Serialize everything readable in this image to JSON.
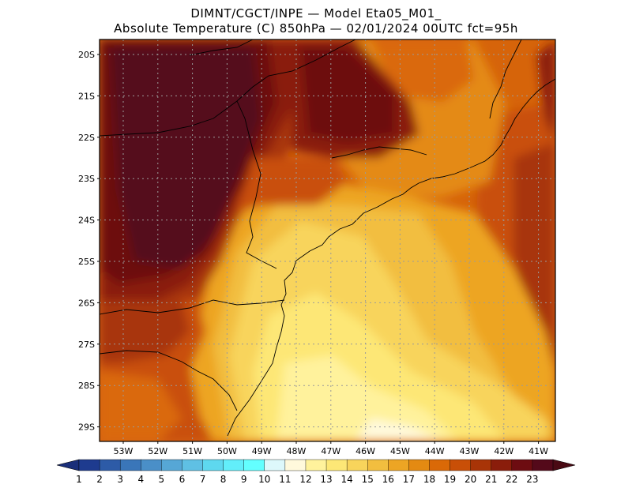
{
  "header": {
    "line1": "DIMNT/CGCT/INPE —   Model Eta05_M01_",
    "line2": "Absolute Temperature (C) 850hPa —   02/01/2024 00UTC fct=95h"
  },
  "axes": {
    "lat_labels": [
      "20S",
      "21S",
      "22S",
      "23S",
      "24S",
      "25S",
      "26S",
      "27S",
      "28S",
      "29S"
    ],
    "lon_labels": [
      "53W",
      "52W",
      "51W",
      "50W",
      "49W",
      "48W",
      "47W",
      "46W",
      "45W",
      "44W",
      "43W",
      "42W",
      "41W"
    ]
  },
  "colorbar": {
    "labels": [
      "1",
      "2",
      "3",
      "4",
      "5",
      "6",
      "7",
      "8",
      "9",
      "10",
      "11",
      "12",
      "13",
      "14",
      "15",
      "16",
      "17",
      "18",
      "19",
      "20",
      "21",
      "22",
      "23"
    ],
    "colors": [
      "#1e3b8f",
      "#2d5ba7",
      "#3a76b9",
      "#4a8fc8",
      "#56a7d6",
      "#5fc0e4",
      "#5ed8ef",
      "#62eefa",
      "#63ffff",
      "#ddf8fb",
      "#fff9dc",
      "#fff29c",
      "#fde776",
      "#f8d45b",
      "#f2be3f",
      "#eda524",
      "#e48a12",
      "#da6907",
      "#c94f07",
      "#a83407",
      "#8a1d0b",
      "#6d0c11",
      "#54091a"
    ],
    "left_arrow_color": "#1a2f7a",
    "right_arrow_color": "#4a0a14"
  }
}
